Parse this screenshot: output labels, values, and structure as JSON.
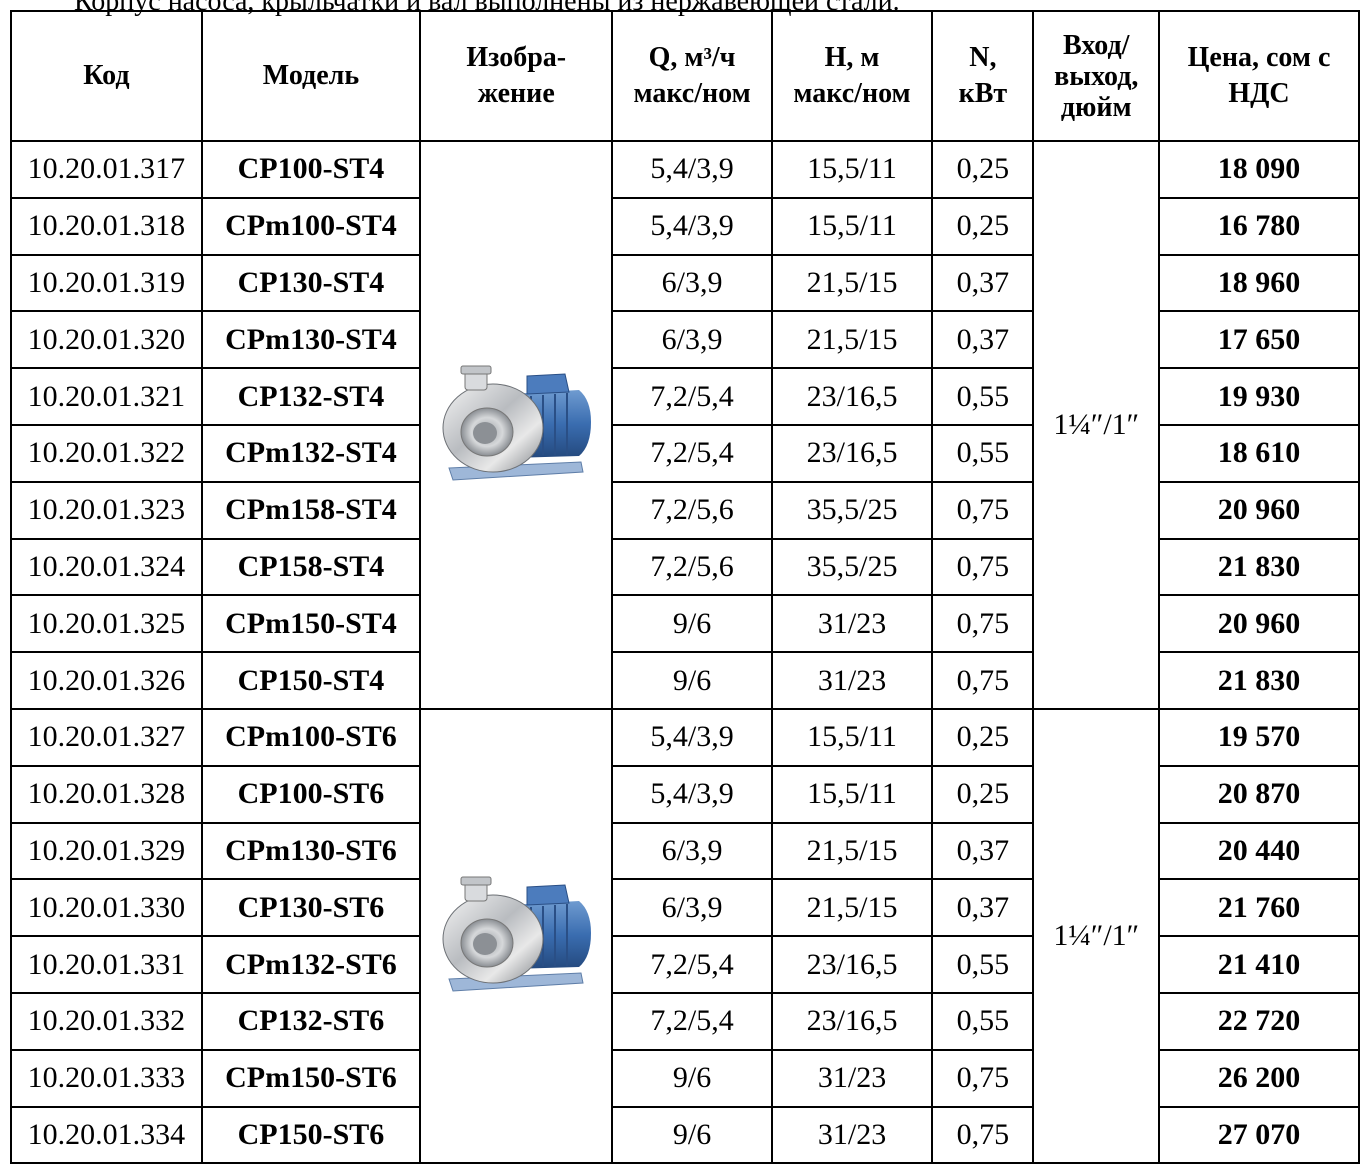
{
  "note": "Корпус насоса, крыльчатки и вал выполнены из нержавеющей стали.",
  "headers": {
    "code": "Код",
    "model": "Модель",
    "image_l1": "Изобра-",
    "image_l2": "жение",
    "q_l1": "Q, м³/ч",
    "q_l2": "макс/ном",
    "h_l1": "Н, м",
    "h_l2": "макс/ном",
    "n_l1": "N,",
    "n_l2": "кВт",
    "io_l1": "Вход/",
    "io_l2": "выход,",
    "io_l3": "дюйм",
    "price_l1": "Цена, сом с",
    "price_l2": "НДС"
  },
  "groups": [
    {
      "connection": "1¼″/1″",
      "image_icon": "stainless-steel-centrifugal-pump",
      "rows": [
        {
          "code": "10.20.01.317",
          "model": "CP100-ST4",
          "q": "5,4/3,9",
          "h": "15,5/11",
          "n": "0,25",
          "price": "18 090"
        },
        {
          "code": "10.20.01.318",
          "model": "CPm100-ST4",
          "q": "5,4/3,9",
          "h": "15,5/11",
          "n": "0,25",
          "price": "16 780"
        },
        {
          "code": "10.20.01.319",
          "model": "CP130-ST4",
          "q": "6/3,9",
          "h": "21,5/15",
          "n": "0,37",
          "price": "18 960"
        },
        {
          "code": "10.20.01.320",
          "model": "CPm130-ST4",
          "q": "6/3,9",
          "h": "21,5/15",
          "n": "0,37",
          "price": "17 650"
        },
        {
          "code": "10.20.01.321",
          "model": "CP132-ST4",
          "q": "7,2/5,4",
          "h": "23/16,5",
          "n": "0,55",
          "price": "19 930"
        },
        {
          "code": "10.20.01.322",
          "model": "CPm132-ST4",
          "q": "7,2/5,4",
          "h": "23/16,5",
          "n": "0,55",
          "price": "18 610"
        },
        {
          "code": "10.20.01.323",
          "model": "CPm158-ST4",
          "q": "7,2/5,6",
          "h": "35,5/25",
          "n": "0,75",
          "price": "20 960"
        },
        {
          "code": "10.20.01.324",
          "model": "CP158-ST4",
          "q": "7,2/5,6",
          "h": "35,5/25",
          "n": "0,75",
          "price": "21 830"
        },
        {
          "code": "10.20.01.325",
          "model": "CPm150-ST4",
          "q": "9/6",
          "h": "31/23",
          "n": "0,75",
          "price": "20 960"
        },
        {
          "code": "10.20.01.326",
          "model": "CP150-ST4",
          "q": "9/6",
          "h": "31/23",
          "n": "0,75",
          "price": "21 830"
        }
      ]
    },
    {
      "connection": "1¼″/1″",
      "image_icon": "stainless-steel-centrifugal-pump",
      "rows": [
        {
          "code": "10.20.01.327",
          "model": "CPm100-ST6",
          "q": "5,4/3,9",
          "h": "15,5/11",
          "n": "0,25",
          "price": "19 570"
        },
        {
          "code": "10.20.01.328",
          "model": "CP100-ST6",
          "q": "5,4/3,9",
          "h": "15,5/11",
          "n": "0,25",
          "price": "20 870"
        },
        {
          "code": "10.20.01.329",
          "model": "CPm130-ST6",
          "q": "6/3,9",
          "h": "21,5/15",
          "n": "0,37",
          "price": "20 440"
        },
        {
          "code": "10.20.01.330",
          "model": "CP130-ST6",
          "q": "6/3,9",
          "h": "21,5/15",
          "n": "0,37",
          "price": "21 760"
        },
        {
          "code": "10.20.01.331",
          "model": "CPm132-ST6",
          "q": "7,2/5,4",
          "h": "23/16,5",
          "n": "0,55",
          "price": "21 410"
        },
        {
          "code": "10.20.01.332",
          "model": "CP132-ST6",
          "q": "7,2/5,4",
          "h": "23/16,5",
          "n": "0,55",
          "price": "22 720"
        },
        {
          "code": "10.20.01.333",
          "model": "CPm150-ST6",
          "q": "9/6",
          "h": "31/23",
          "n": "0,75",
          "price": "26 200"
        },
        {
          "code": "10.20.01.334",
          "model": "CP150-ST6",
          "q": "9/6",
          "h": "31/23",
          "n": "0,75",
          "price": "27 070"
        }
      ]
    }
  ]
}
